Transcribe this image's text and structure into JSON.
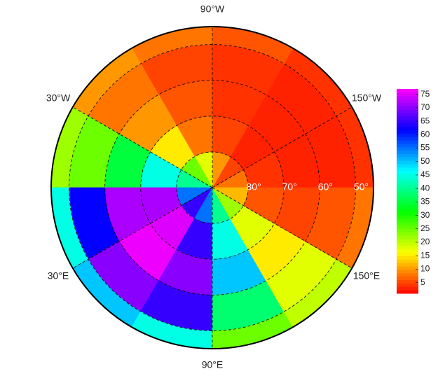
{
  "chart_data": {
    "type": "polar_heatmap",
    "lon_bins": [
      -180,
      -150,
      -120,
      -90,
      -60,
      -30,
      0,
      30,
      60,
      90,
      120,
      150,
      180
    ],
    "lat_bins": [
      90,
      80,
      70,
      60,
      50,
      45
    ],
    "ylim": [
      90,
      45
    ],
    "values": [
      [
        8,
        5,
        10,
        18,
        25,
        40,
        55,
        65,
        55,
        40,
        22,
        12
      ],
      [
        4,
        3,
        5,
        8,
        15,
        45,
        72,
        75,
        65,
        45,
        18,
        6
      ],
      [
        3,
        3,
        4,
        6,
        10,
        35,
        72,
        76,
        70,
        50,
        15,
        5
      ],
      [
        3,
        3,
        4,
        5,
        8,
        25,
        62,
        70,
        65,
        38,
        18,
        6
      ],
      [
        4,
        4,
        6,
        8,
        10,
        22,
        45,
        50,
        45,
        25,
        20,
        8
      ]
    ],
    "lon_ticks": [
      {
        "value": -90,
        "label": "90°W"
      },
      {
        "value": -30,
        "label": "30°W"
      },
      {
        "value": -150,
        "label": "150°W"
      },
      {
        "value": 30,
        "label": "30°E"
      },
      {
        "value": 150,
        "label": "150°E"
      },
      {
        "value": 90,
        "label": "90°E"
      }
    ],
    "lat_ticks": [
      {
        "value": 80,
        "label": "80°"
      },
      {
        "value": 70,
        "label": "70°"
      },
      {
        "value": 60,
        "label": "60°"
      },
      {
        "value": 50,
        "label": "50°"
      }
    ],
    "zlim": [
      1,
      77
    ],
    "zticks": [
      5,
      10,
      15,
      20,
      25,
      30,
      35,
      40,
      45,
      50,
      55,
      60,
      65,
      70,
      75
    ]
  }
}
